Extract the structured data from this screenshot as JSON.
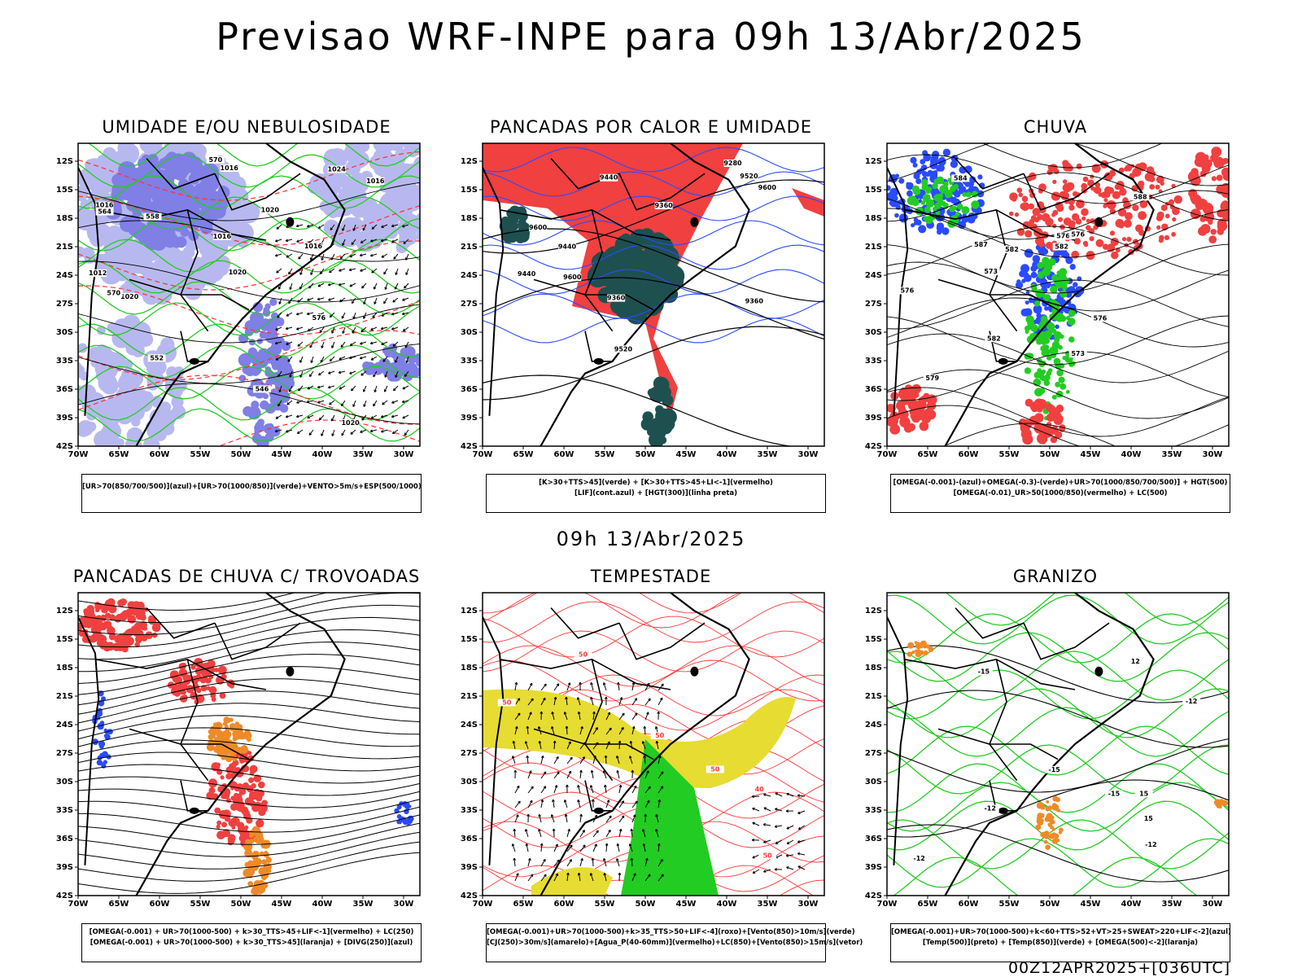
{
  "header": {
    "title": "Previsao WRF-INPE  para 09h 13/Abr/2025"
  },
  "mid_label": "09h 13/Abr/2025",
  "footer": {
    "run_code": "00Z12APR2025+[036UTC]"
  },
  "axes": {
    "lat_labels": [
      "12S",
      "15S",
      "18S",
      "21S",
      "24S",
      "27S",
      "30S",
      "33S",
      "36S",
      "39S",
      "42S"
    ],
    "lon_labels": [
      "70W",
      "65W",
      "60W",
      "55W",
      "50W",
      "45W",
      "40W",
      "35W",
      "30W"
    ]
  },
  "colors": {
    "blue_fill": "#7f7fe6",
    "green_line": "#22cc22",
    "red_fill": "#f04040",
    "dark_teal": "#1e5050",
    "yellow_fill": "#e6dc32",
    "orange_fill": "#f08a28",
    "contour_black": "#000000"
  },
  "panels": [
    {
      "title": "UMIDADE E/OU NEBULOSIDADE",
      "legend": [
        "[UR>70(850/700/500)](azul)+[UR>70(1000/850)](verde)+VENTO>5m/s+ESP(500/1000)"
      ],
      "contour_labels": [
        "1012",
        "1016",
        "1016",
        "1016",
        "1016",
        "1020",
        "1020",
        "1020",
        "1016",
        "1024",
        "1020",
        "576",
        "570",
        "564",
        "558",
        "552",
        "546",
        "570"
      ]
    },
    {
      "title": "PANCADAS POR CALOR E UMIDADE",
      "legend": [
        "[K>30+TTS>45](verde) + [K>30+TTS>45+LI<-1](vermelho)",
        "[LIF](cont.azul) + [HGT(300)](linha preta)"
      ],
      "contour_labels": [
        "9600",
        "9440",
        "9520",
        "9600",
        "9520",
        "9440",
        "9360",
        "9280",
        "9440",
        "9360",
        "9360",
        "9600"
      ]
    },
    {
      "title": "CHUVA",
      "legend": [
        "[OMEGA(-0.001)-(azul)+OMEGA(-0.3)-(verde)+UR>70(1000/850/700/500)] + HGT(500)",
        "[OMEGA(-0.01)_UR>50(1000/850)(vermelho) + LC(500)"
      ],
      "contour_labels": [
        "588",
        "582",
        "576",
        "582",
        "579",
        "576",
        "573",
        "576",
        "573",
        "582",
        "584",
        "587",
        "576"
      ]
    },
    {
      "title": "PANCADAS DE CHUVA C/ TROVOADAS",
      "legend": [
        "[OMEGA(-0.001) + UR>70(1000-500) + k>30_TTS>45+LIF<-1](vermelho) + LC(250)",
        "[OMEGA(-0.001) + UR>70(1000-500) + k>30_TTS>45](laranja) + [DIVG(250)](azul)"
      ],
      "contour_labels": []
    },
    {
      "title": "TEMPESTADE",
      "legend": [
        "[OMEGA(-0.001)+UR>70(1000-500)+k>35_TTS>50+LIF<-4](roxo)+[Vento(850)>10m/s](verde)",
        "[CJ(250)>30m/s](amarelo)+[Agua_P(40-60mm)](vermelho)+LC(850)+[Vento(850)>15m/s](vetor)"
      ],
      "contour_labels": [
        "50",
        "50",
        "50",
        "40",
        "50",
        "50"
      ]
    },
    {
      "title": "GRANIZO",
      "legend": [
        "[OMEGA(-0.001)+UR>70(1000-500)+k<60+TTS>52+VT>25+SWEAT>220+LIF<-2](azul)",
        "[Temp(500)](preto) + [Temp(850)](verde) + [OMEGA(500)<-2](laranja)"
      ],
      "contour_labels": [
        "-12",
        "-12",
        "-15",
        "-12",
        "-12",
        "-15",
        "-15",
        "12",
        "15",
        "15"
      ]
    }
  ]
}
